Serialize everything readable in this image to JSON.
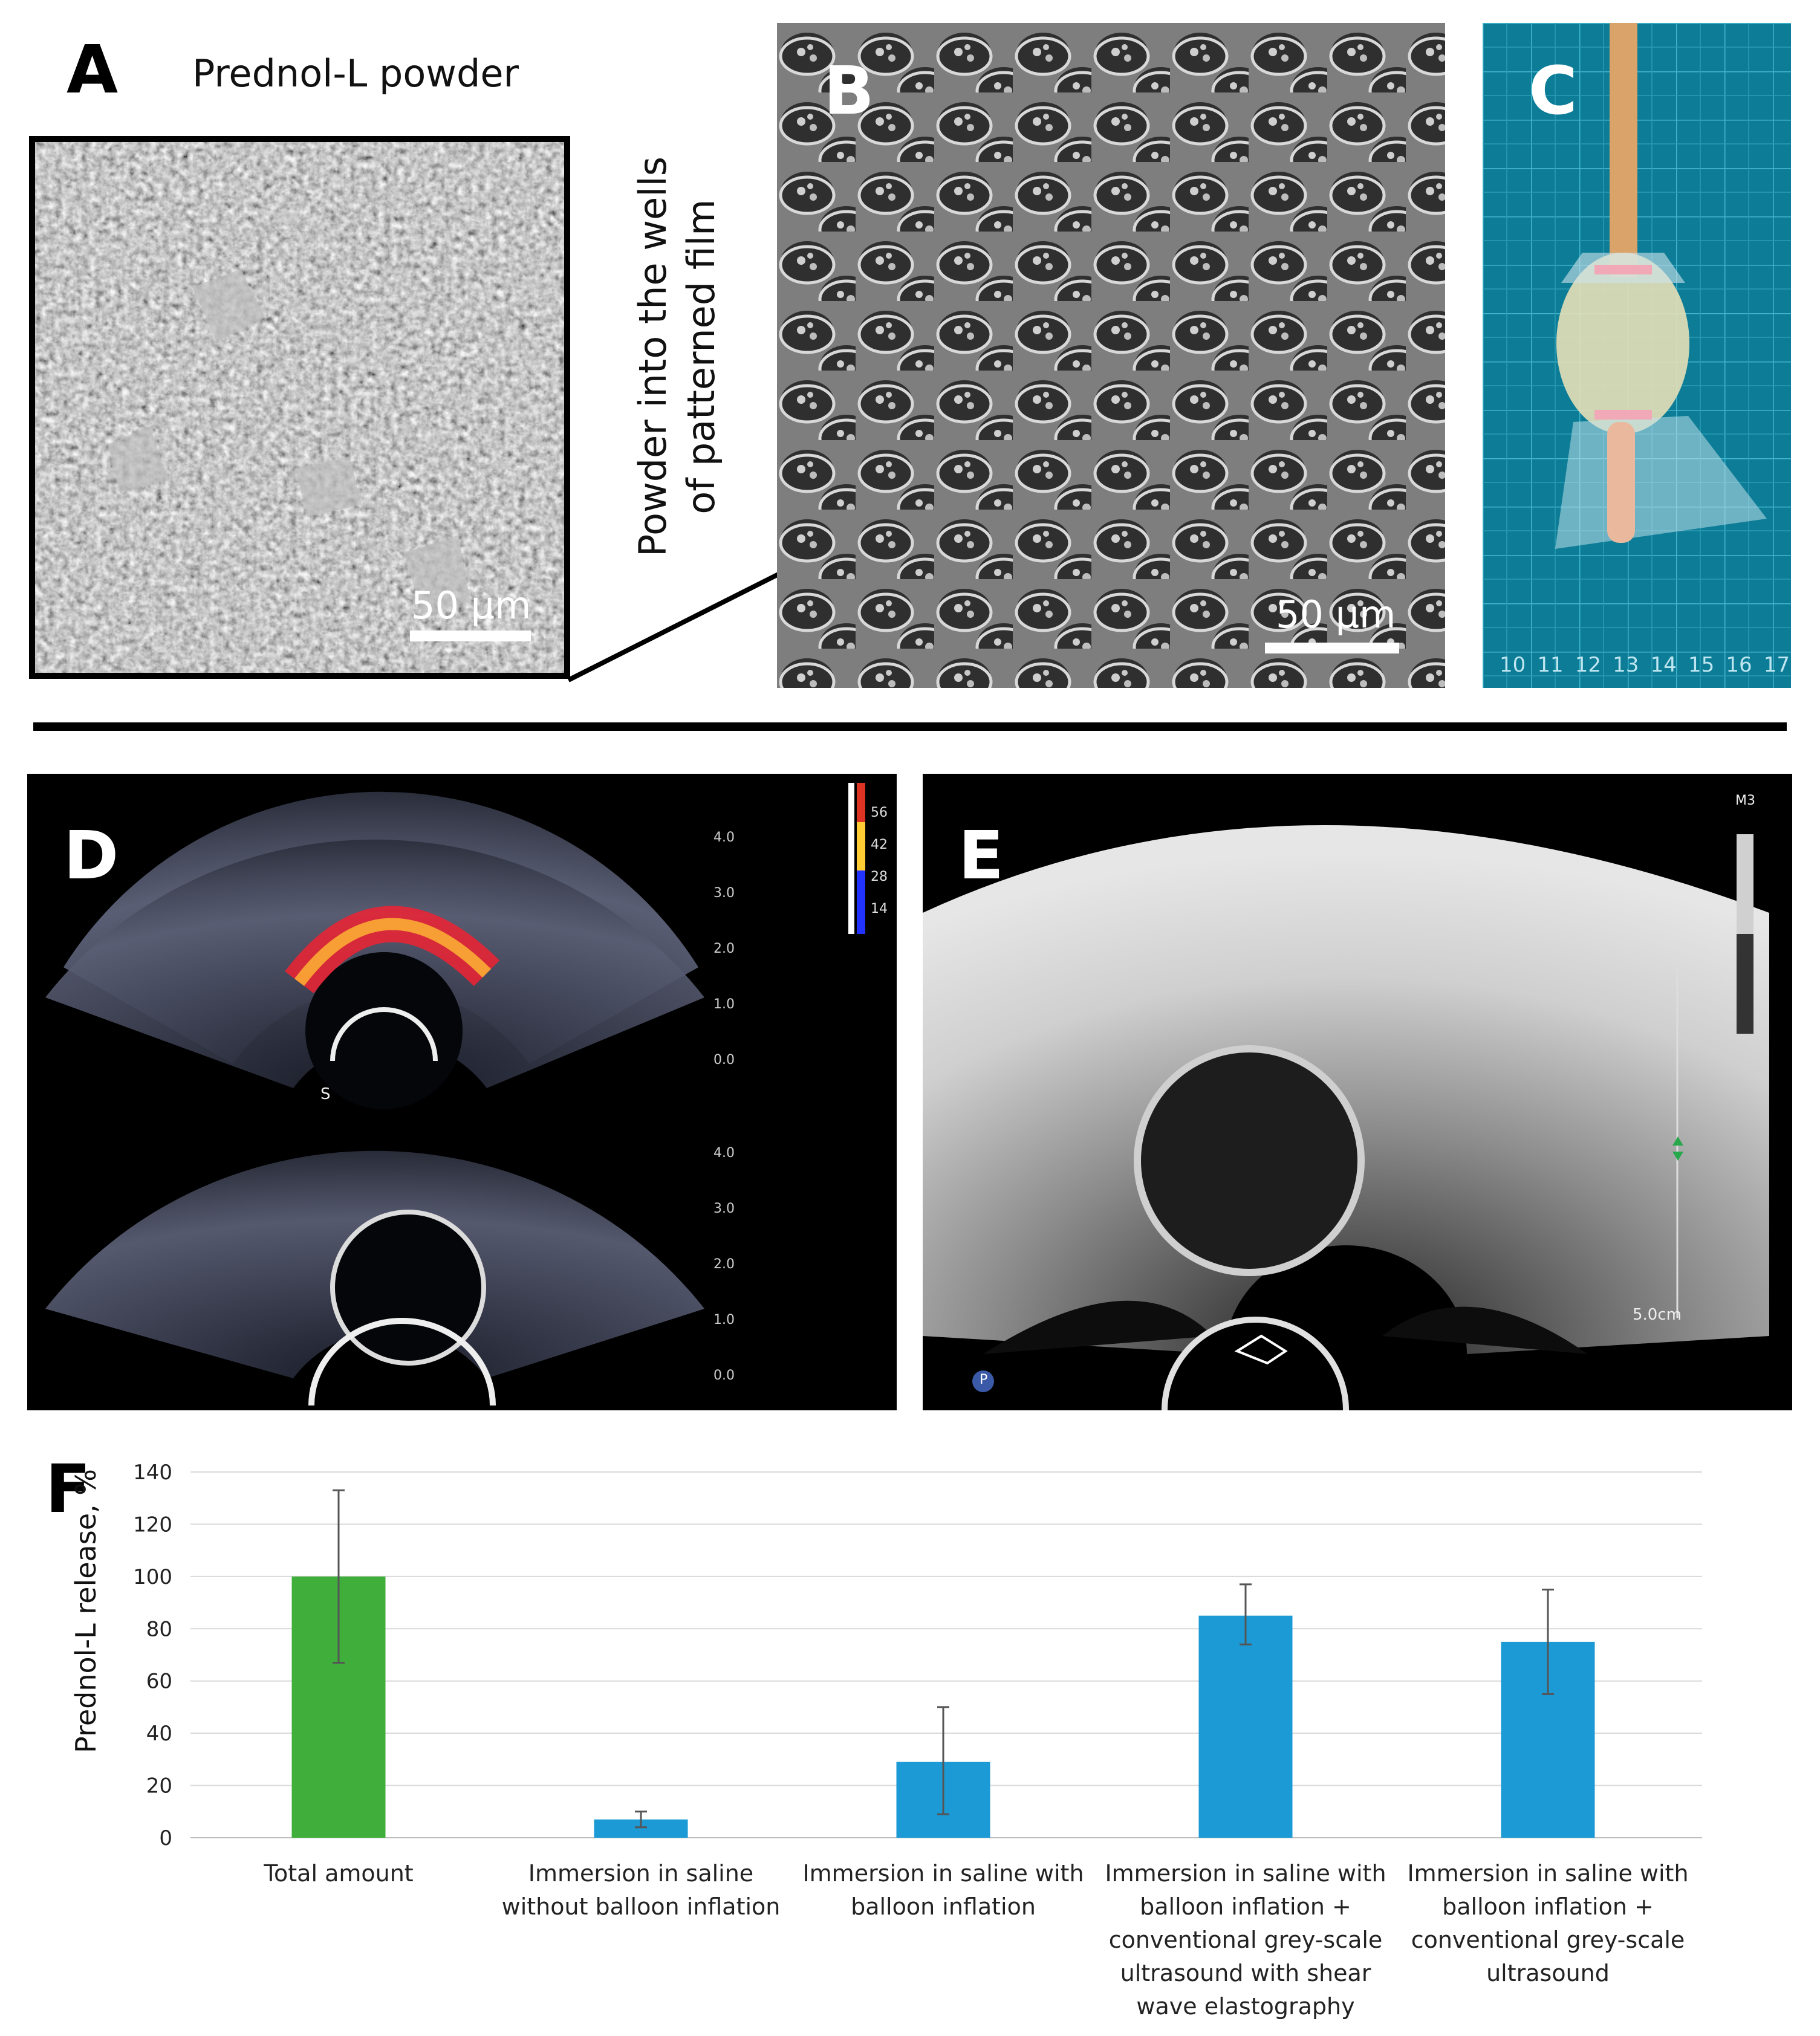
{
  "panels": {
    "A": {
      "letter": "A",
      "caption": "Prednol-L powder",
      "scale_bar": "50 µm"
    },
    "B": {
      "letter": "B",
      "scale_bar": "50 µm",
      "arrow_label_line1": "Powder into the wells",
      "arrow_label_line2": "of patterned film"
    },
    "C": {
      "letter": "C",
      "ruler_ticks": [
        "10",
        "11",
        "12",
        "13",
        "14",
        "15",
        "16",
        "17"
      ]
    },
    "D": {
      "letter": "D",
      "depth_ticks": [
        "4.0",
        "3.0",
        "2.0",
        "1.0",
        "0.0"
      ],
      "colorbar_ticks": [
        "56",
        "42",
        "28",
        "14"
      ],
      "marker": "S"
    },
    "E": {
      "letter": "E",
      "probe_label": "M3",
      "depth_label": "5.0cm",
      "badge": "P"
    },
    "F": {
      "letter": "F"
    }
  },
  "chart_data": {
    "type": "bar",
    "ylabel": "Prednol-L release, %",
    "ylim": [
      0,
      140
    ],
    "yticks": [
      0,
      20,
      40,
      60,
      80,
      100,
      120,
      140
    ],
    "grid": true,
    "categories": [
      [
        "Total amount"
      ],
      [
        "Immersion in saline",
        "without balloon inflation"
      ],
      [
        "Immersion in saline with",
        "balloon inflation"
      ],
      [
        "Immersion in saline with",
        "balloon inflation +",
        "conventional grey-scale",
        "ultrasound with shear",
        "wave elastography"
      ],
      [
        "Immersion in saline with",
        "balloon inflation +",
        "conventional grey-scale",
        "ultrasound"
      ]
    ],
    "values": [
      100,
      7,
      29,
      85,
      75
    ],
    "error_low": [
      67,
      4,
      9,
      74,
      55
    ],
    "error_high": [
      133,
      10,
      50,
      97,
      95
    ],
    "colors": [
      "#3fae3a",
      "#1b9ad6",
      "#1b9ad6",
      "#1b9ad6",
      "#1b9ad6"
    ]
  }
}
